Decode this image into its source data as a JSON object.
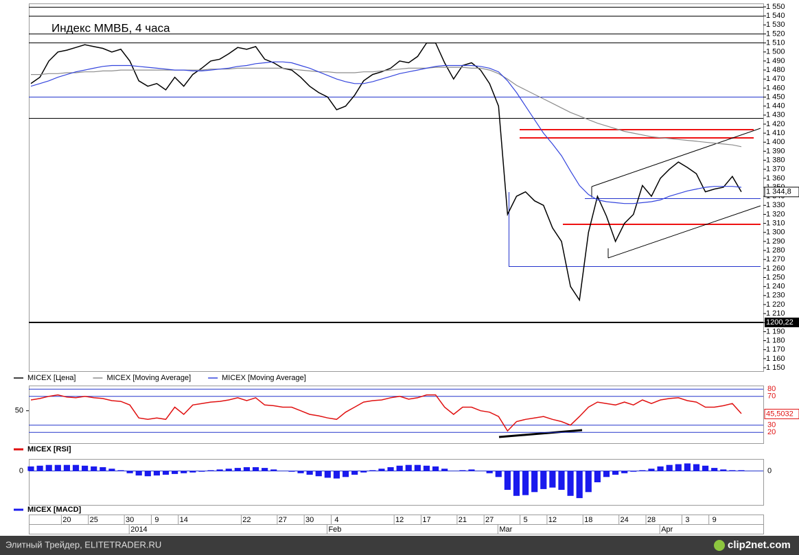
{
  "chart_data": [
    {
      "type": "line",
      "title": "Индекс ММВБ, 4 часа",
      "categories": [
        null,
        null,
        null,
        null,
        "20",
        null,
        null,
        "25",
        null,
        null,
        null,
        "30",
        null,
        null,
        "9",
        null,
        null,
        "14",
        null,
        null,
        null,
        null,
        null,
        null,
        "22",
        null,
        null,
        null,
        "27",
        null,
        null,
        "30",
        null,
        null,
        "4",
        null,
        null,
        null,
        null,
        null,
        null,
        "12",
        null,
        null,
        "17",
        null,
        null,
        null,
        "21",
        null,
        null,
        "27",
        null,
        null,
        null,
        "5",
        null,
        null,
        "12",
        null,
        null,
        null,
        "18",
        null,
        null,
        null,
        "24",
        null,
        null,
        "28",
        null,
        null,
        null,
        "3",
        null,
        null,
        "9",
        null,
        null,
        null
      ],
      "months": [
        null,
        null,
        null,
        null,
        null,
        null,
        null,
        null,
        null,
        null,
        null,
        null,
        "2014",
        null,
        null,
        null,
        null,
        null,
        null,
        null,
        null,
        null,
        null,
        null,
        null,
        null,
        null,
        null,
        null,
        null,
        null,
        null,
        null,
        null,
        "Feb",
        null,
        null,
        null,
        null,
        null,
        null,
        null,
        null,
        null,
        null,
        null,
        null,
        null,
        null,
        null,
        null,
        null,
        null,
        "Mar",
        null,
        null,
        null,
        null,
        null,
        null,
        null,
        null,
        null,
        null,
        null,
        null,
        null,
        null,
        null,
        null,
        null,
        "Apr",
        null,
        null,
        null,
        null,
        null,
        null,
        null,
        null
      ],
      "series": [
        {
          "name": "MICEX [Цена]",
          "color": "#000000",
          "values": [
            1465,
            1472,
            1490,
            1500,
            1502,
            1505,
            1508,
            1506,
            1504,
            1500,
            1503,
            1490,
            1468,
            1462,
            1465,
            1458,
            1472,
            1462,
            1475,
            1482,
            1490,
            1492,
            1498,
            1505,
            1503,
            1506,
            1492,
            1488,
            1482,
            1480,
            1472,
            1462,
            1455,
            1450,
            1436,
            1440,
            1452,
            1468,
            1475,
            1478,
            1482,
            1490,
            1488,
            1495,
            1510,
            1510,
            1488,
            1470,
            1485,
            1488,
            1480,
            1465,
            1440,
            1320,
            1340,
            1345,
            1335,
            1330,
            1305,
            1290,
            1240,
            1225,
            1300,
            1340,
            1318,
            1290,
            1310,
            1320,
            1352,
            1340,
            1360,
            1370,
            1378,
            1372,
            1365,
            1345,
            1348,
            1350,
            1362,
            1345
          ]
        },
        {
          "name": "MICEX [Moving Average]",
          "color": "#8c8c8c",
          "values": [
            1475,
            1475,
            1476,
            1476,
            1477,
            1477,
            1478,
            1478,
            1479,
            1479,
            1480,
            1480,
            1480,
            1480,
            1480,
            1480,
            1480,
            1480,
            1480,
            1480,
            1481,
            1481,
            1481,
            1482,
            1482,
            1482,
            1482,
            1482,
            1482,
            1481,
            1480,
            1479,
            1478,
            1478,
            1477,
            1477,
            1477,
            1478,
            1478,
            1479,
            1480,
            1481,
            1482,
            1482,
            1482,
            1483,
            1483,
            1483,
            1483,
            1482,
            1482,
            1480,
            1476,
            1470,
            1463,
            1458,
            1453,
            1448,
            1443,
            1438,
            1433,
            1429,
            1425,
            1421,
            1418,
            1415,
            1412,
            1410,
            1408,
            1406,
            1405,
            1404,
            1403,
            1402,
            1401,
            1400,
            1399,
            1398,
            1397,
            1395
          ]
        },
        {
          "name": "MICEX [Moving Average]",
          "color": "#3344dd",
          "values": [
            1462,
            1465,
            1468,
            1472,
            1475,
            1478,
            1480,
            1482,
            1484,
            1485,
            1485,
            1485,
            1484,
            1483,
            1482,
            1481,
            1480,
            1480,
            1479,
            1479,
            1480,
            1481,
            1482,
            1484,
            1485,
            1487,
            1488,
            1489,
            1489,
            1488,
            1485,
            1482,
            1478,
            1474,
            1470,
            1467,
            1465,
            1465,
            1467,
            1470,
            1473,
            1476,
            1478,
            1480,
            1482,
            1484,
            1485,
            1485,
            1485,
            1485,
            1484,
            1482,
            1478,
            1468,
            1455,
            1440,
            1425,
            1410,
            1398,
            1385,
            1368,
            1352,
            1342,
            1336,
            1334,
            1333,
            1332,
            1332,
            1333,
            1334,
            1336,
            1340,
            1343,
            1346,
            1348,
            1350,
            1351,
            1351,
            1351,
            1350
          ]
        }
      ],
      "current": {
        "value": 1344.8,
        "label": "1 344,8"
      },
      "level": {
        "value": 1200.22,
        "label": "1200,22"
      },
      "ylim": [
        1150,
        1550
      ],
      "yticks": [
        {
          "value": 1150,
          "label": "1 150"
        },
        {
          "value": 1160,
          "label": "1 160"
        },
        {
          "value": 1170,
          "label": "1 170"
        },
        {
          "value": 1180,
          "label": "1 180"
        },
        {
          "value": 1190,
          "label": "1 190"
        },
        {
          "value": 1200,
          "label": "1 200"
        },
        {
          "value": 1210,
          "label": "1 210"
        },
        {
          "value": 1220,
          "label": "1 220"
        },
        {
          "value": 1230,
          "label": "1 230"
        },
        {
          "value": 1240,
          "label": "1 240"
        },
        {
          "value": 1250,
          "label": "1 250"
        },
        {
          "value": 1260,
          "label": "1 260"
        },
        {
          "value": 1270,
          "label": "1 270"
        },
        {
          "value": 1280,
          "label": "1 280"
        },
        {
          "value": 1290,
          "label": "1 290"
        },
        {
          "value": 1300,
          "label": "1 300"
        },
        {
          "value": 1310,
          "label": "1 310"
        },
        {
          "value": 1320,
          "label": "1 320"
        },
        {
          "value": 1330,
          "label": "1 330"
        },
        {
          "value": 1340,
          "label": "1 340"
        },
        {
          "value": 1350,
          "label": "1 350"
        },
        {
          "value": 1360,
          "label": "1 360"
        },
        {
          "value": 1370,
          "label": "1 370"
        },
        {
          "value": 1380,
          "label": "1 380"
        },
        {
          "value": 1390,
          "label": "1 390"
        },
        {
          "value": 1400,
          "label": "1 400"
        },
        {
          "value": 1410,
          "label": "1 410"
        },
        {
          "value": 1420,
          "label": "1 420"
        },
        {
          "value": 1430,
          "label": "1 430"
        },
        {
          "value": 1440,
          "label": "1 440"
        },
        {
          "value": 1450,
          "label": "1 450"
        },
        {
          "value": 1460,
          "label": "1 460"
        },
        {
          "value": 1470,
          "label": "1 470"
        },
        {
          "value": 1480,
          "label": "1 480"
        },
        {
          "value": 1490,
          "label": "1 490"
        },
        {
          "value": 1500,
          "label": "1 500"
        },
        {
          "value": 1510,
          "label": "1 510"
        },
        {
          "value": 1520,
          "label": "1 520"
        },
        {
          "value": 1530,
          "label": "1 530"
        },
        {
          "value": 1540,
          "label": "1 540"
        },
        {
          "value": 1550,
          "label": "1 550"
        }
      ]
    },
    {
      "type": "line",
      "series": [
        {
          "name": "MICEX [RSI]",
          "color": "#e01010",
          "values": [
            65,
            67,
            70,
            72,
            69,
            68,
            70,
            68,
            67,
            64,
            63,
            58,
            40,
            38,
            40,
            38,
            55,
            45,
            58,
            60,
            62,
            63,
            65,
            68,
            64,
            68,
            58,
            57,
            55,
            55,
            50,
            45,
            43,
            40,
            38,
            48,
            55,
            62,
            64,
            65,
            68,
            70,
            66,
            68,
            72,
            72,
            55,
            45,
            55,
            55,
            50,
            48,
            42,
            22,
            35,
            38,
            40,
            42,
            38,
            35,
            30,
            42,
            55,
            62,
            60,
            58,
            62,
            58,
            65,
            60,
            65,
            67,
            68,
            64,
            62,
            55,
            55,
            57,
            60,
            46
          ]
        }
      ],
      "current": {
        "value": 45.5032,
        "label": "45,5032"
      },
      "ylim": [
        5,
        84
      ],
      "yticks_left": [
        50
      ],
      "yticks_right": [
        80,
        70,
        30,
        20
      ]
    },
    {
      "type": "bar",
      "series": [
        {
          "name": "MICEX [MACD]",
          "color": "#1a1aee",
          "values": [
            6,
            7,
            8,
            8,
            8,
            8,
            7,
            6,
            5,
            3,
            1,
            -3,
            -6,
            -7,
            -6,
            -5,
            -4,
            -3,
            -2,
            -1,
            1,
            2,
            3,
            4,
            5,
            5,
            4,
            2,
            0,
            -1,
            -3,
            -5,
            -7,
            -9,
            -10,
            -8,
            -5,
            -2,
            1,
            3,
            5,
            7,
            8,
            8,
            7,
            6,
            3,
            0,
            1,
            2,
            0,
            -3,
            -8,
            -25,
            -33,
            -32,
            -28,
            -24,
            -22,
            -25,
            -33,
            -36,
            -28,
            -15,
            -8,
            -5,
            -3,
            -1,
            1,
            3,
            6,
            8,
            9,
            10,
            9,
            7,
            4,
            2,
            1,
            1
          ]
        }
      ],
      "ylim": [
        -45,
        15
      ],
      "yticks": [
        0
      ]
    }
  ],
  "footer": {
    "left": "Элитный Трейдер, ELITETRADER.RU",
    "right": "clip2net.com"
  }
}
